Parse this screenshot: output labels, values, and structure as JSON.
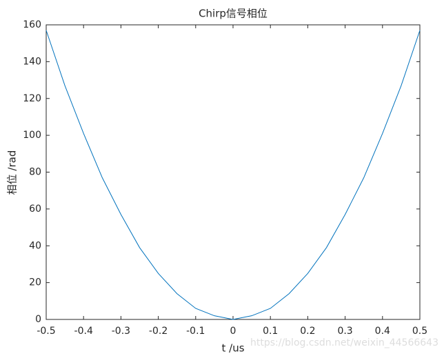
{
  "chart_data": {
    "type": "line",
    "title": "Chirp信号相位",
    "x_label": "t /us",
    "y_label": "相位 /rad",
    "x": [
      -0.5,
      -0.45,
      -0.4,
      -0.35,
      -0.3,
      -0.25,
      -0.2,
      -0.15,
      -0.1,
      -0.05,
      0,
      0.05,
      0.1,
      0.15,
      0.2,
      0.25,
      0.3,
      0.35,
      0.4,
      0.45,
      0.5
    ],
    "series": [
      {
        "name": "phase",
        "color": "#0072bd",
        "values": [
          157,
          127,
          101,
          77,
          57,
          39,
          25,
          14,
          6,
          2,
          0,
          2,
          6,
          14,
          25,
          39,
          57,
          77,
          101,
          127,
          157
        ]
      }
    ],
    "xlim": [
      -0.5,
      0.5
    ],
    "xticks": [
      -0.5,
      -0.4,
      -0.3,
      -0.2,
      -0.1,
      0,
      0.1,
      0.2,
      0.3,
      0.4,
      0.5
    ],
    "ylim": [
      0,
      160
    ],
    "yticks": [
      0,
      20,
      40,
      60,
      80,
      100,
      120,
      140,
      160
    ],
    "watermark": "https://blog.csdn.net/weixin_44566643"
  }
}
